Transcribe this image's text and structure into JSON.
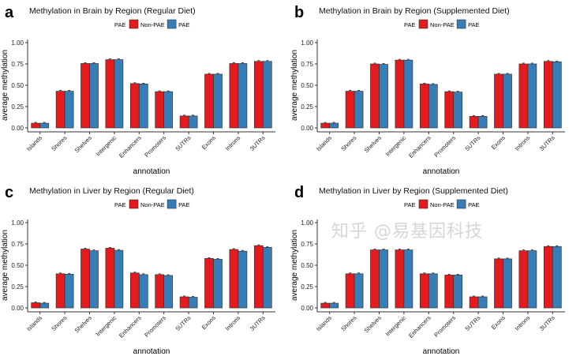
{
  "watermark": "知乎 @易基因科技",
  "colors": {
    "Non-PAE": "#e41a1c",
    "PAE": "#377eb8",
    "axis": "#333333"
  },
  "chart_data": [
    {
      "type": "bar",
      "panel": "a",
      "title": "Methylation in Brain by Region (Regular Diet)",
      "xlabel": "annotation",
      "ylabel": "average methylation",
      "ylim": [
        0,
        1
      ],
      "yticks": [
        "0.00",
        "0.25",
        "0.50",
        "0.75",
        "1.00"
      ],
      "grid": false,
      "legend_placement": "top",
      "legend_title": "PAE",
      "categories": [
        "Islands",
        "Shores",
        "Shelves",
        "Intergenic",
        "Enhancers",
        "Promoters",
        "5UTRs",
        "Exons",
        "Introns",
        "3UTRs"
      ],
      "series": [
        {
          "name": "Non-PAE",
          "values": [
            0.055,
            0.43,
            0.755,
            0.8,
            0.52,
            0.425,
            0.14,
            0.63,
            0.755,
            0.78
          ]
        },
        {
          "name": "PAE",
          "values": [
            0.055,
            0.43,
            0.755,
            0.8,
            0.515,
            0.425,
            0.14,
            0.63,
            0.755,
            0.78
          ]
        }
      ]
    },
    {
      "type": "bar",
      "panel": "b",
      "title": "Methylation in Brain by Region (Supplemented Diet)",
      "xlabel": "annotation",
      "ylabel": "average methylation",
      "ylim": [
        0,
        1
      ],
      "yticks": [
        "0.00",
        "0.25",
        "0.50",
        "0.75",
        "1.00"
      ],
      "grid": false,
      "legend_placement": "top",
      "legend_title": "PAE",
      "categories": [
        "Islands",
        "Shores",
        "Shelves",
        "Intergenic",
        "Enhancers",
        "Promoters",
        "5UTRs",
        "Exons",
        "Introns",
        "3UTRs"
      ],
      "series": [
        {
          "name": "Non-PAE",
          "values": [
            0.055,
            0.43,
            0.75,
            0.795,
            0.515,
            0.425,
            0.135,
            0.63,
            0.75,
            0.78
          ]
        },
        {
          "name": "PAE",
          "values": [
            0.055,
            0.43,
            0.745,
            0.795,
            0.51,
            0.42,
            0.135,
            0.63,
            0.75,
            0.775
          ]
        }
      ]
    },
    {
      "type": "bar",
      "panel": "c",
      "title": "Methylation in Liver by Region (Regular Diet)",
      "xlabel": "annotation",
      "ylabel": "average methylation",
      "ylim": [
        0,
        1
      ],
      "yticks": [
        "0.00",
        "0.25",
        "0.50",
        "0.75",
        "1.00"
      ],
      "grid": false,
      "legend_placement": "top",
      "legend_title": "PAE",
      "categories": [
        "Islands",
        "Shores",
        "Shelves",
        "Intergenic",
        "Enhancers",
        "Promoters",
        "5UTRs",
        "Exons",
        "Introns",
        "3UTRs"
      ],
      "series": [
        {
          "name": "Non-PAE",
          "values": [
            0.06,
            0.4,
            0.69,
            0.7,
            0.41,
            0.39,
            0.13,
            0.58,
            0.685,
            0.73
          ]
        },
        {
          "name": "PAE",
          "values": [
            0.055,
            0.395,
            0.67,
            0.675,
            0.39,
            0.38,
            0.125,
            0.57,
            0.665,
            0.71
          ]
        }
      ]
    },
    {
      "type": "bar",
      "panel": "d",
      "title": "Methylation in Liver by Region (Supplemented Diet)",
      "xlabel": "annotation",
      "ylabel": "average methylation",
      "ylim": [
        0,
        1
      ],
      "yticks": [
        "0.00",
        "0.25",
        "0.50",
        "0.75",
        "1.00"
      ],
      "grid": false,
      "legend_placement": "top",
      "legend_title": "PAE",
      "categories": [
        "Islands",
        "Shores",
        "Shelves",
        "Intergenic",
        "Enhancers",
        "Promoters",
        "5UTRs",
        "Exons",
        "Introns",
        "3UTRs"
      ],
      "series": [
        {
          "name": "Non-PAE",
          "values": [
            0.055,
            0.4,
            0.68,
            0.68,
            0.4,
            0.385,
            0.13,
            0.575,
            0.67,
            0.72
          ]
        },
        {
          "name": "PAE",
          "values": [
            0.055,
            0.4,
            0.68,
            0.68,
            0.4,
            0.385,
            0.13,
            0.575,
            0.67,
            0.72
          ]
        }
      ]
    }
  ]
}
